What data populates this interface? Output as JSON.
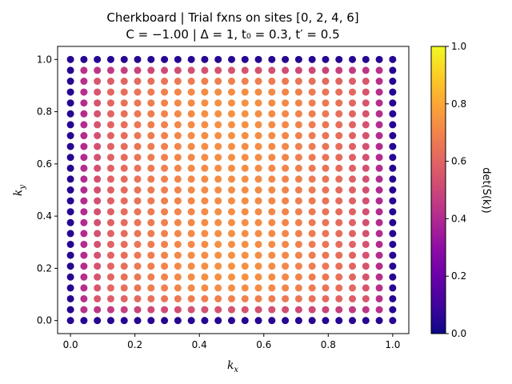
{
  "chart_data": {
    "type": "scatter",
    "title_line1": "Cherkboard | Trial fxns on sites [0, 2, 4, 6]",
    "title_line2": "C = −1.00 | Δ = 1,  t₀ = 0.3,  t′ = 0.5",
    "xlabel_base": "k",
    "xlabel_sub": "x",
    "ylabel_base": "k",
    "ylabel_sub": "y",
    "xlim": [
      -0.04,
      1.05
    ],
    "ylim": [
      -0.05,
      1.05
    ],
    "xticks": [
      0.0,
      0.2,
      0.4,
      0.6,
      0.8,
      1.0
    ],
    "yticks": [
      0.0,
      0.2,
      0.4,
      0.6,
      0.8,
      1.0
    ],
    "xtick_labels": [
      "0.0",
      "0.2",
      "0.4",
      "0.6",
      "0.8",
      "1.0"
    ],
    "ytick_labels": [
      "0.0",
      "0.2",
      "0.4",
      "0.6",
      "0.8",
      "1.0"
    ],
    "grid_n": 25,
    "grid_range": [
      0.0,
      1.0
    ],
    "color_by": "det(S(k))",
    "colormap": "plasma",
    "clim": [
      0.0,
      1.0
    ],
    "colorbar": {
      "label": "det(S(k))",
      "ticks": [
        0.0,
        0.2,
        0.4,
        0.6,
        0.8,
        1.0
      ],
      "tick_labels": [
        "0.0",
        "0.2",
        "0.4",
        "0.6",
        "0.8",
        "1.0"
      ]
    },
    "grid": false
  }
}
